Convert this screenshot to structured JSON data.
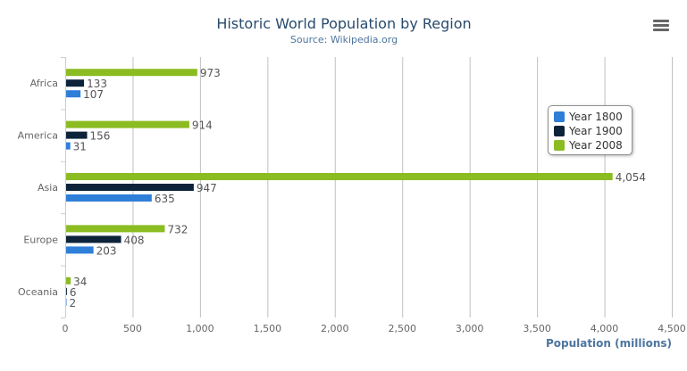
{
  "chart_data": {
    "type": "bar",
    "orientation": "horizontal",
    "title": "Historic World Population by Region",
    "subtitle": "Source: Wikipedia.org",
    "categories": [
      "Africa",
      "America",
      "Asia",
      "Europe",
      "Oceania"
    ],
    "series": [
      {
        "name": "Year 1800",
        "color": "#2f7ed8",
        "values": [
          107,
          31,
          635,
          203,
          2
        ]
      },
      {
        "name": "Year 1900",
        "color": "#0d233a",
        "values": [
          133,
          156,
          947,
          408,
          6
        ]
      },
      {
        "name": "Year 2008",
        "color": "#8bbc21",
        "values": [
          973,
          914,
          4054,
          732,
          34
        ]
      }
    ],
    "data_labels": {
      "Year 1800": [
        "107",
        "31",
        "635",
        "203",
        "2"
      ],
      "Year 1900": [
        "133",
        "156",
        "947",
        "408",
        "6"
      ],
      "Year 2008": [
        "973",
        "914",
        "4,054",
        "732",
        "34"
      ]
    },
    "xlabel": "Population (millions)",
    "ylabel": "",
    "xlim": [
      0,
      4500
    ],
    "ticks": [
      "0",
      "500",
      "1,000",
      "1,500",
      "2,000",
      "2,500",
      "3,000",
      "3,500",
      "4,000",
      "4,500"
    ],
    "tick_values": [
      0,
      500,
      1000,
      1500,
      2000,
      2500,
      3000,
      3500,
      4000,
      4500
    ],
    "grid": true,
    "legend_placement": "right"
  },
  "menu_icon": "hamburger-menu-icon"
}
